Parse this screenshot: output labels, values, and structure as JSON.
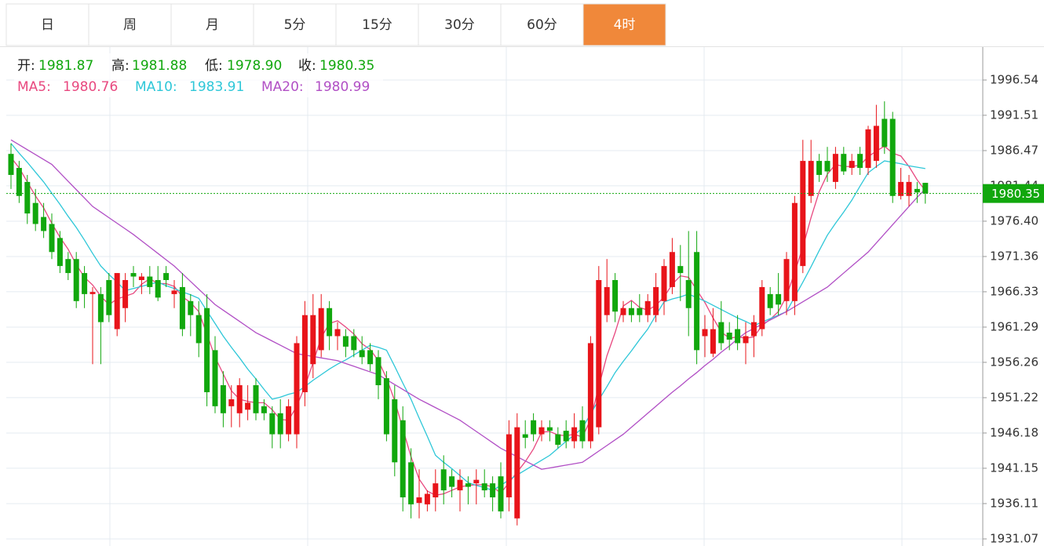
{
  "tabs": [
    "日",
    "周",
    "月",
    "5分",
    "15分",
    "30分",
    "60分",
    "4时"
  ],
  "active_tab": 7,
  "info": [
    {
      "label": "开:",
      "value": "1981.87"
    },
    {
      "label": "高:",
      "value": "1981.88"
    },
    {
      "label": "低:",
      "value": "1978.90"
    },
    {
      "label": "收:",
      "value": "1980.35"
    }
  ],
  "chart_data": {
    "type": "candlestick",
    "up_color": "#e8141a",
    "down_color": "#11a70d",
    "ohlc": [
      [
        1986,
        1987.5,
        1981,
        1983
      ],
      [
        1984,
        1985,
        1979,
        1980
      ],
      [
        1982,
        1983,
        1976,
        1977.5
      ],
      [
        1979,
        1981,
        1975,
        1976
      ],
      [
        1977,
        1979,
        1974,
        1975
      ],
      [
        1976,
        1977.5,
        1971,
        1972
      ],
      [
        1974,
        1975,
        1969,
        1970
      ],
      [
        1971,
        1972,
        1968,
        1969
      ],
      [
        1971,
        1972,
        1964,
        1965
      ],
      [
        1969,
        1970,
        1964,
        1966
      ],
      [
        1966,
        1967,
        1956,
        1966.3
      ],
      [
        1966,
        1967,
        1956,
        1962
      ],
      [
        1968,
        1969,
        1962,
        1963
      ],
      [
        1961,
        1969,
        1960,
        1969
      ],
      [
        1964,
        1969,
        1962,
        1968
      ],
      [
        1969,
        1970,
        1967,
        1968.5
      ],
      [
        1968,
        1969,
        1966,
        1968.5
      ],
      [
        1968.5,
        1970,
        1966,
        1967
      ],
      [
        1968,
        1970,
        1965,
        1965.5
      ],
      [
        1969,
        1970,
        1967,
        1968
      ],
      [
        1966,
        1968,
        1964,
        1966.5
      ],
      [
        1967,
        1969,
        1960,
        1961
      ],
      [
        1965,
        1966,
        1960,
        1963
      ],
      [
        1963,
        1965,
        1957,
        1959
      ],
      [
        1964,
        1966,
        1950,
        1952
      ],
      [
        1958,
        1960,
        1949,
        1950
      ],
      [
        1953,
        1955,
        1947,
        1949
      ],
      [
        1950,
        1953,
        1947,
        1951
      ],
      [
        1949,
        1954,
        1947,
        1953
      ],
      [
        1949.5,
        1953,
        1948,
        1950.5
      ],
      [
        1953,
        1954,
        1948,
        1949
      ],
      [
        1950,
        1951,
        1948,
        1949
      ],
      [
        1949,
        1950,
        1944,
        1946
      ],
      [
        1949,
        1951,
        1944,
        1946
      ],
      [
        1946,
        1951,
        1945,
        1950
      ],
      [
        1946,
        1960,
        1944,
        1959
      ],
      [
        1952,
        1965,
        1950,
        1963
      ],
      [
        1956,
        1966,
        1954,
        1963
      ],
      [
        1958,
        1966,
        1957,
        1964
      ],
      [
        1964,
        1965,
        1958,
        1960
      ],
      [
        1960,
        1962,
        1958,
        1961
      ],
      [
        1960,
        1961,
        1957,
        1958.5
      ],
      [
        1960,
        1961,
        1957,
        1958
      ],
      [
        1958,
        1960,
        1956,
        1957
      ],
      [
        1958,
        1959,
        1955,
        1956
      ],
      [
        1957,
        1958,
        1951,
        1953
      ],
      [
        1954,
        1955,
        1945,
        1946
      ],
      [
        1951,
        1953,
        1940,
        1942
      ],
      [
        1948,
        1950,
        1935,
        1937
      ],
      [
        1942,
        1944,
        1934,
        1936
      ],
      [
        1936.2,
        1941,
        1934,
        1937
      ],
      [
        1936,
        1938,
        1935,
        1937.5
      ],
      [
        1937,
        1941,
        1935,
        1939
      ],
      [
        1941,
        1943,
        1936,
        1938
      ],
      [
        1940,
        1941,
        1937,
        1938.5
      ],
      [
        1938,
        1941,
        1935,
        1939.5
      ],
      [
        1939,
        1940,
        1936,
        1938.5
      ],
      [
        1939,
        1941,
        1936,
        1939.5
      ],
      [
        1939,
        1941,
        1937,
        1938
      ],
      [
        1939,
        1940,
        1935,
        1937
      ],
      [
        1940,
        1942,
        1934,
        1935
      ],
      [
        1937,
        1948,
        1935,
        1946
      ],
      [
        1934,
        1949,
        1933,
        1947
      ],
      [
        1946,
        1948,
        1944,
        1945.5
      ],
      [
        1948,
        1949,
        1945,
        1946
      ],
      [
        1946,
        1948,
        1945,
        1947
      ],
      [
        1947,
        1948,
        1945,
        1946.5
      ],
      [
        1946,
        1947,
        1944,
        1944.5
      ],
      [
        1946.5,
        1948,
        1944,
        1945
      ],
      [
        1945,
        1949,
        1944,
        1947
      ],
      [
        1948,
        1950,
        1944,
        1945
      ],
      [
        1945,
        1960,
        1944,
        1959
      ],
      [
        1947,
        1970,
        1946,
        1968
      ],
      [
        1963,
        1971,
        1962,
        1967
      ],
      [
        1968,
        1969,
        1962,
        1963.5
      ],
      [
        1963,
        1965,
        1962,
        1964
      ],
      [
        1964,
        1965,
        1962,
        1963
      ],
      [
        1964,
        1966,
        1962,
        1963
      ],
      [
        1963,
        1966,
        1962,
        1965
      ],
      [
        1963,
        1969,
        1962,
        1967
      ],
      [
        1965,
        1971,
        1963,
        1970
      ],
      [
        1967,
        1974,
        1966,
        1972
      ],
      [
        1970,
        1973,
        1965,
        1969
      ],
      [
        1968,
        1975,
        1960,
        1964
      ],
      [
        1972,
        1975,
        1956,
        1958
      ],
      [
        1960,
        1963,
        1957,
        1961
      ],
      [
        1957.5,
        1964,
        1957,
        1961
      ],
      [
        1962,
        1965,
        1958,
        1959
      ],
      [
        1960.5,
        1962,
        1958,
        1959.5
      ],
      [
        1961,
        1963,
        1958,
        1959
      ],
      [
        1959,
        1962,
        1956,
        1960
      ],
      [
        1960,
        1963,
        1957,
        1962
      ],
      [
        1961,
        1968,
        1960,
        1967
      ],
      [
        1966,
        1967,
        1963,
        1964
      ],
      [
        1966,
        1969,
        1963,
        1964.5
      ],
      [
        1965,
        1972,
        1963,
        1971
      ],
      [
        1965,
        1980,
        1963,
        1979
      ],
      [
        1970,
        1988,
        1969,
        1985
      ],
      [
        1980,
        1988,
        1979,
        1985
      ],
      [
        1985,
        1986,
        1982,
        1983
      ],
      [
        1985,
        1987,
        1982,
        1983.5
      ],
      [
        1982,
        1987,
        1981,
        1986
      ],
      [
        1986,
        1987,
        1983,
        1983.5
      ],
      [
        1984,
        1986,
        1983,
        1985
      ],
      [
        1986,
        1987,
        1983,
        1984
      ],
      [
        1984,
        1990,
        1983,
        1989.5
      ],
      [
        1985,
        1993,
        1984,
        1990
      ],
      [
        1991,
        1993.5,
        1986,
        1987
      ],
      [
        1991,
        1992,
        1979,
        1980
      ],
      [
        1980,
        1984,
        1979.5,
        1982
      ],
      [
        1980,
        1983,
        1978.5,
        1982
      ],
      [
        1981,
        1982,
        1979,
        1980.5
      ],
      [
        1981.87,
        1981.88,
        1978.9,
        1980.35
      ]
    ],
    "series": [
      {
        "name": "MA5:",
        "color": "#e8487f",
        "values": [
          1985.5,
          1984,
          1982,
          1980,
          1978.3,
          1976.1,
          1974.1,
          1972.4,
          1970.2,
          1968.4,
          1967.3,
          1965.7,
          1964.5,
          1965.3,
          1965.7,
          1966.1,
          1967.4,
          1968.2,
          1967.5,
          1967.5,
          1967.1,
          1965.6,
          1964.8,
          1963.5,
          1960.3,
          1957,
          1954.6,
          1952.2,
          1951,
          1950.7,
          1950.5,
          1950.5,
          1949.5,
          1948.1,
          1948,
          1950,
          1952.8,
          1956.2,
          1959.8,
          1961.8,
          1962.2,
          1961.3,
          1960.3,
          1958.9,
          1958.1,
          1956.5,
          1954,
          1950.8,
          1946.8,
          1942.8,
          1939.6,
          1937.9,
          1937.3,
          1937.5,
          1938,
          1938.5,
          1938.7,
          1938.8,
          1938.8,
          1938.5,
          1937.6,
          1939.1,
          1940.6,
          1942.1,
          1943.9,
          1946.3,
          1946.4,
          1945.9,
          1945.8,
          1946,
          1945.6,
          1948.1,
          1952.8,
          1957.2,
          1960.5,
          1964.3,
          1965.1,
          1964.1,
          1963.7,
          1964.4,
          1965.6,
          1967.4,
          1968.6,
          1968.4,
          1966.6,
          1964.8,
          1962.6,
          1960.6,
          1959.7,
          1959.9,
          1959.7,
          1959.9,
          1961.5,
          1962.4,
          1963.5,
          1965.7,
          1969.1,
          1972.7,
          1976.9,
          1980.6,
          1983.1,
          1984.5,
          1984.2,
          1984.2,
          1984.4,
          1985.6,
          1986.4,
          1987.1,
          1986.1,
          1985.7,
          1984.2,
          1982.3,
          1980.76
        ]
      },
      {
        "name": "MA10:",
        "color": "#2ec7d8",
        "values": [
          1987.5,
          1986.1,
          1984.8,
          1983.4,
          1982,
          1980.4,
          1978.8,
          1977.1,
          1975.5,
          1973.7,
          1971.8,
          1970,
          1968.8,
          1967.7,
          1966.5,
          1966.8,
          1967.1,
          1967.4,
          1967.7,
          1967.2,
          1966.8,
          1966.3,
          1965.9,
          1965.4,
          1963.6,
          1961.8,
          1960,
          1958.4,
          1956.9,
          1955.3,
          1953.9,
          1952.4,
          1951,
          1951.3,
          1951.7,
          1952,
          1952.8,
          1953.7,
          1954.5,
          1955.3,
          1956,
          1956.6,
          1957.3,
          1958,
          1958.7,
          1958.4,
          1958,
          1955.7,
          1953.3,
          1951,
          1948.3,
          1945.7,
          1943,
          1942,
          1941.1,
          1940.1,
          1939.1,
          1938.7,
          1938.4,
          1938,
          1938.7,
          1939.5,
          1940.2,
          1940.9,
          1941.6,
          1942.3,
          1943,
          1944,
          1945,
          1945.9,
          1946.9,
          1948.9,
          1950.9,
          1952.8,
          1954.8,
          1956.4,
          1957.9,
          1959.5,
          1961,
          1963,
          1964.9,
          1965.3,
          1965.6,
          1966,
          1965.5,
          1965,
          1964.4,
          1963.8,
          1963.2,
          1962.6,
          1962.1,
          1961.5,
          1962,
          1962.5,
          1963,
          1963.5,
          1965.6,
          1967.7,
          1969.9,
          1972.2,
          1974.4,
          1976.1,
          1977.7,
          1979.4,
          1981.4,
          1983.3,
          1984.2,
          1985,
          1984.8,
          1984.6,
          1984.3,
          1984.1,
          1983.91
        ]
      },
      {
        "name": "MA20:",
        "color": "#b14fc5",
        "values": [
          1988,
          1987.3,
          1986.6,
          1985.9,
          1985.2,
          1984.5,
          1983.3,
          1982.1,
          1980.9,
          1979.7,
          1978.5,
          1977.7,
          1976.9,
          1976.1,
          1975.3,
          1974.5,
          1973.6,
          1972.7,
          1971.8,
          1970.9,
          1970,
          1968.9,
          1967.8,
          1966.7,
          1965.6,
          1964.5,
          1963.7,
          1962.9,
          1962.1,
          1961.3,
          1960.5,
          1959.9,
          1959.3,
          1958.7,
          1958.1,
          1957.5,
          1957.3,
          1957.1,
          1956.9,
          1956.7,
          1956.5,
          1956.1,
          1955.7,
          1955.3,
          1954.9,
          1954.5,
          1953.8,
          1953.1,
          1952.4,
          1951.7,
          1951,
          1950.4,
          1949.8,
          1949.2,
          1948.6,
          1948,
          1947.2,
          1946.4,
          1945.6,
          1944.8,
          1944,
          1943.4,
          1942.8,
          1942.2,
          1941.6,
          1941,
          1941.2,
          1941.4,
          1941.6,
          1941.8,
          1942,
          1942.8,
          1943.6,
          1944.4,
          1945.2,
          1946,
          1947,
          1948,
          1949,
          1950,
          1951,
          1952,
          1952.9,
          1953.9,
          1954.8,
          1955.8,
          1956.7,
          1957.7,
          1958.6,
          1959.6,
          1960.5,
          1961.1,
          1961.7,
          1962.3,
          1962.9,
          1963.5,
          1964.2,
          1964.9,
          1965.6,
          1966.3,
          1967,
          1968,
          1969,
          1970,
          1971,
          1972,
          1973.3,
          1974.6,
          1975.9,
          1977.2,
          1978.5,
          1979.8,
          1980.99
        ]
      }
    ],
    "last_price": 1980.35,
    "last_price_color": "#11a70d",
    "ylim": [
      1930.06,
      2001.24
    ],
    "yticks": [
      1996.54,
      1991.51,
      1986.47,
      1981.44,
      {
        "value": 1976.4,
        "label": "1976.40"
      },
      1971.36,
      1966.33,
      1961.29,
      1956.26,
      1951.22,
      1946.18,
      1941.15,
      1936.11,
      1931.07
    ],
    "grid": true
  }
}
